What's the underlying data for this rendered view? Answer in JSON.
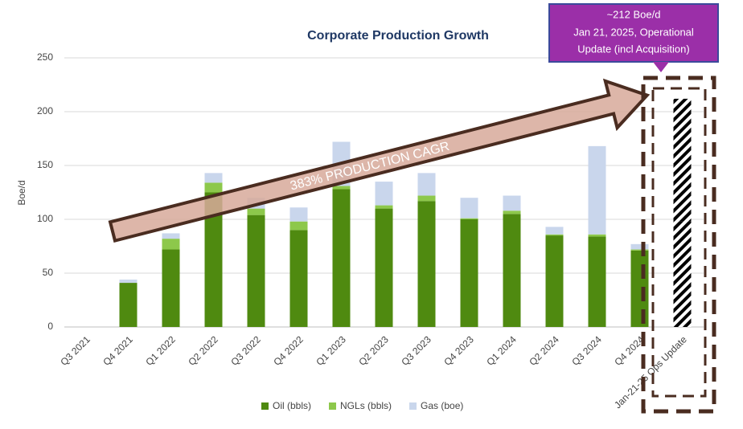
{
  "chart_data": {
    "type": "stacked_bar",
    "title": "Corporate Production Growth",
    "y_label": "Boe/d",
    "categories": [
      "Q3 2021",
      "Q4 2021",
      "Q1 2022",
      "Q2 2022",
      "Q3 2022",
      "Q4 2022",
      "Q1 2023",
      "Q2 2023",
      "Q3 2023",
      "Q4 2023",
      "Q1 2024",
      "Q2 2024",
      "Q3 2024",
      "Q4 2024",
      "Jan-21-25 Ops Update"
    ],
    "series": [
      {
        "name": "Oil (bbls)",
        "color": "#4f8a10",
        "values": [
          0,
          41,
          72,
          125,
          104,
          90,
          128,
          110,
          117,
          100,
          105,
          85,
          84,
          71,
          98
        ]
      },
      {
        "name": "NGLs (bbls)",
        "color": "#8dc84b",
        "values": [
          0,
          0,
          10,
          9,
          6,
          8,
          3,
          3,
          5,
          1,
          3,
          1,
          2,
          1,
          0
        ]
      },
      {
        "name": "Gas (boe)",
        "color": "#c9d6ec",
        "values": [
          0,
          3,
          5,
          9,
          10,
          13,
          41,
          22,
          21,
          19,
          14,
          7,
          82,
          5,
          114
        ]
      }
    ],
    "hatched": "Jan-21-25 Ops Update",
    "ylim": [
      0,
      250
    ],
    "yticks": [
      0,
      50,
      100,
      150,
      200,
      250
    ],
    "grid": true,
    "legend": "bottom",
    "annotations": {
      "arrow": "383% PRODUCTION CAGR",
      "callout": [
        "~212 Boe/d",
        "Jan 21, 2025, Operational",
        "Update (incl Acquisition)"
      ]
    }
  }
}
